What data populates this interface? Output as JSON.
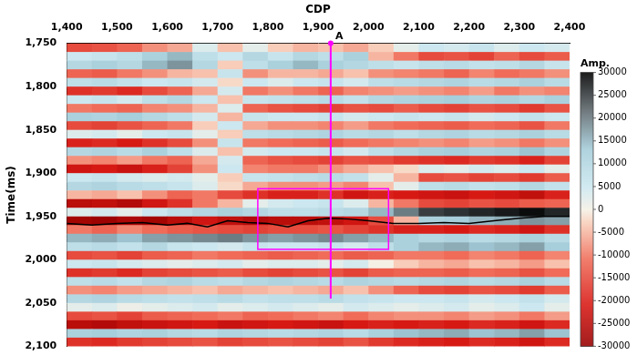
{
  "chart_data": {
    "type": "heatmap",
    "x_label": "CDP",
    "y_label": "Time(ms)",
    "xlim": [
      1400,
      2400
    ],
    "xticks": [
      1400,
      1500,
      1600,
      1700,
      1800,
      1900,
      2000,
      2100,
      2200,
      2300,
      2400
    ],
    "ylim": [
      2100,
      1750
    ],
    "yticks": [
      1750,
      1800,
      1850,
      1900,
      1950,
      2000,
      2050,
      2100
    ],
    "grid": false,
    "x_bins": [
      1400,
      1450,
      1500,
      1550,
      1600,
      1650,
      1700,
      1750,
      1800,
      1850,
      1900,
      1950,
      2000,
      2050,
      2100,
      2150,
      2200,
      2250,
      2300,
      2350,
      2400
    ],
    "y_bins": [
      1750,
      1760,
      1770,
      1780,
      1790,
      1800,
      1810,
      1820,
      1830,
      1840,
      1850,
      1860,
      1870,
      1880,
      1890,
      1900,
      1910,
      1920,
      1930,
      1940,
      1950,
      1960,
      1970,
      1980,
      1990,
      2000,
      2010,
      2020,
      2030,
      2040,
      2050,
      2060,
      2070,
      2080,
      2090,
      2100
    ],
    "cells": [
      [
        -15000,
        -14000,
        -12000,
        -8000,
        -6000,
        3000,
        -4000,
        2000,
        -3000,
        -5000,
        -4000,
        -6000,
        -3000,
        2000,
        5000,
        4000,
        6000,
        3000,
        5000,
        4000
      ],
      [
        5000,
        6000,
        8000,
        12000,
        15000,
        8000,
        5000,
        10000,
        6000,
        10000,
        8000,
        12000,
        -5000,
        -10000,
        -15000,
        -14000,
        -16000,
        -12000,
        -15000,
        -13000
      ],
      [
        10000,
        12000,
        10000,
        15000,
        18000,
        10000,
        -3000,
        8000,
        12000,
        15000,
        12000,
        10000,
        8000,
        6000,
        8000,
        9000,
        7000,
        8000,
        10000,
        6000
      ],
      [
        -12000,
        -13000,
        -10000,
        -8000,
        -5000,
        -4000,
        6000,
        -8000,
        -5000,
        -5000,
        -6000,
        -4000,
        -8000,
        -9000,
        -10000,
        -12000,
        -9000,
        -11000,
        -10000,
        -8000
      ],
      [
        8000,
        9000,
        7000,
        5000,
        6000,
        4000,
        -2000,
        5000,
        3000,
        5000,
        6000,
        4000,
        8000,
        9000,
        10000,
        11000,
        9000,
        10000,
        12000,
        9000
      ],
      [
        -18000,
        -17000,
        -19000,
        -15000,
        -12000,
        -6000,
        4000,
        -10000,
        -8000,
        -10000,
        -12000,
        -9000,
        -8000,
        -7000,
        -8000,
        -9000,
        -7000,
        -10000,
        -8000,
        -9000
      ],
      [
        5000,
        6000,
        4000,
        8000,
        10000,
        5000,
        -4000,
        6000,
        7000,
        8000,
        9000,
        7000,
        10000,
        11000,
        12000,
        13000,
        11000,
        12000,
        10000,
        12000
      ],
      [
        -10000,
        -11000,
        -12000,
        -9000,
        -8000,
        -5000,
        3000,
        -12000,
        -14000,
        -15000,
        -16000,
        -14000,
        -15000,
        -13000,
        -15000,
        -16000,
        -14000,
        -15000,
        -17000,
        -14000
      ],
      [
        12000,
        11000,
        13000,
        10000,
        8000,
        4000,
        -5000,
        6000,
        5000,
        5000,
        6000,
        4000,
        5000,
        6000,
        5000,
        6000,
        4000,
        5000,
        7000,
        5000
      ],
      [
        -15000,
        -16000,
        -14000,
        -12000,
        -10000,
        -3000,
        5000,
        -6000,
        -8000,
        -8000,
        -9000,
        -7000,
        -10000,
        -11000,
        -12000,
        -13000,
        -11000,
        -12000,
        -14000,
        -10000
      ],
      [
        3000,
        4000,
        2000,
        5000,
        6000,
        2000,
        -3000,
        8000,
        9000,
        10000,
        11000,
        9000,
        10000,
        8000,
        10000,
        11000,
        9000,
        10000,
        12000,
        9000
      ],
      [
        -20000,
        -19000,
        -21000,
        -18000,
        -15000,
        -8000,
        6000,
        -10000,
        -11000,
        -12000,
        -13000,
        -11000,
        -10000,
        -9000,
        -8000,
        -9000,
        -7000,
        -8000,
        -10000,
        -8000
      ],
      [
        10000,
        11000,
        9000,
        12000,
        8000,
        3000,
        -4000,
        4000,
        5000,
        5000,
        6000,
        4000,
        8000,
        10000,
        12000,
        13000,
        11000,
        12000,
        14000,
        11000
      ],
      [
        -8000,
        -9000,
        -7000,
        -10000,
        -12000,
        -6000,
        4000,
        -12000,
        -14000,
        -15000,
        -16000,
        -14000,
        -15000,
        -17000,
        -18000,
        -19000,
        -17000,
        -18000,
        -20000,
        -16000
      ],
      [
        -22000,
        -21000,
        -23000,
        -20000,
        -16000,
        -8000,
        5000,
        -9000,
        -10000,
        -10000,
        -8000,
        -6000,
        -4000,
        -2000,
        3000,
        2000,
        4000,
        3000,
        5000,
        2000
      ],
      [
        5000,
        6000,
        4000,
        3000,
        4000,
        2000,
        -3000,
        6000,
        7000,
        8000,
        9000,
        7000,
        2000,
        -5000,
        -15000,
        -14000,
        -16000,
        -15000,
        -17000,
        -13000
      ],
      [
        10000,
        11000,
        9000,
        8000,
        6000,
        3000,
        -2000,
        -6000,
        -8000,
        -8000,
        -7000,
        -9000,
        -4000,
        2000,
        8000,
        9000,
        7000,
        8000,
        10000,
        7000
      ],
      [
        -5000,
        -6000,
        -4000,
        -8000,
        -12000,
        -10000,
        -15000,
        -18000,
        -20000,
        -20000,
        -18000,
        -22000,
        -20000,
        -21000,
        -22000,
        -23000,
        -21000,
        -22000,
        -24000,
        -20000
      ],
      [
        -25000,
        -24000,
        -26000,
        -22000,
        -18000,
        -10000,
        -5000,
        2000,
        4000,
        5000,
        6000,
        3000,
        -5000,
        -10000,
        -15000,
        -16000,
        -14000,
        -15000,
        -13000,
        -12000
      ],
      [
        3000,
        4000,
        2000,
        5000,
        8000,
        10000,
        12000,
        10000,
        8000,
        8000,
        9000,
        10000,
        15000,
        20000,
        25000,
        26000,
        27000,
        28000,
        29000,
        27000
      ],
      [
        -28000,
        -29000,
        -27000,
        -28000,
        -25000,
        -22000,
        -24000,
        -26000,
        -25000,
        -25000,
        -24000,
        -22000,
        -15000,
        -5000,
        12000,
        13000,
        15000,
        16000,
        18000,
        17000
      ],
      [
        -10000,
        -12000,
        -9000,
        -11000,
        -13000,
        -14000,
        -15000,
        -16000,
        -15000,
        -15000,
        -14000,
        -16000,
        -18000,
        -20000,
        -20000,
        -21000,
        -19000,
        -20000,
        -22000,
        -18000
      ],
      [
        15000,
        16000,
        14000,
        17000,
        18000,
        19000,
        20000,
        18000,
        17000,
        18000,
        19000,
        17000,
        15000,
        12000,
        10000,
        11000,
        9000,
        10000,
        12000,
        9000
      ],
      [
        8000,
        9000,
        7000,
        10000,
        6000,
        5000,
        4000,
        6000,
        5000,
        5000,
        6000,
        4000,
        8000,
        12000,
        15000,
        16000,
        14000,
        15000,
        17000,
        13000
      ],
      [
        -15000,
        -14000,
        -16000,
        -13000,
        -12000,
        -10000,
        -11000,
        -12000,
        -13000,
        -12000,
        -11000,
        -13000,
        -12000,
        -10000,
        -10000,
        -11000,
        -9000,
        -10000,
        -12000,
        -9000
      ],
      [
        5000,
        6000,
        4000,
        3000,
        2000,
        3000,
        4000,
        2000,
        3000,
        3000,
        2000,
        4000,
        0,
        -3000,
        -5000,
        -6000,
        -4000,
        -5000,
        -7000,
        -4000
      ],
      [
        -18000,
        -17000,
        -19000,
        -16000,
        -15000,
        -14000,
        -13000,
        -15000,
        -16000,
        -15000,
        -14000,
        -16000,
        -13000,
        -12000,
        -12000,
        -13000,
        -11000,
        -12000,
        -14000,
        -11000
      ],
      [
        8000,
        9000,
        7000,
        10000,
        11000,
        9000,
        8000,
        10000,
        11000,
        10000,
        9000,
        11000,
        10000,
        9000,
        10000,
        11000,
        9000,
        10000,
        12000,
        9000
      ],
      [
        -8000,
        -9000,
        -7000,
        -6000,
        -5000,
        -4000,
        -6000,
        -5000,
        -4000,
        -5000,
        -6000,
        -4000,
        -8000,
        -12000,
        -15000,
        -16000,
        -14000,
        -15000,
        -17000,
        -13000
      ],
      [
        10000,
        11000,
        9000,
        8000,
        7000,
        8000,
        9000,
        7000,
        8000,
        8000,
        9000,
        7000,
        6000,
        5000,
        5000,
        6000,
        4000,
        5000,
        7000,
        4000
      ],
      [
        2000,
        3000,
        1000,
        2000,
        3000,
        4000,
        2000,
        3000,
        4000,
        3000,
        2000,
        4000,
        3000,
        2000,
        3000,
        4000,
        2000,
        3000,
        5000,
        2000
      ],
      [
        -15000,
        -14000,
        -16000,
        -13000,
        -12000,
        -11000,
        -10000,
        -12000,
        -11000,
        -10000,
        -9000,
        -11000,
        -9000,
        -8000,
        -8000,
        -9000,
        -7000,
        -8000,
        -10000,
        -7000
      ],
      [
        -25000,
        -26000,
        -24000,
        -23000,
        -22000,
        -21000,
        -23000,
        -22000,
        -21000,
        -22000,
        -23000,
        -21000,
        -20000,
        -21000,
        -20000,
        -21000,
        -19000,
        -20000,
        -22000,
        -19000
      ],
      [
        12000,
        13000,
        11000,
        12000,
        10000,
        9000,
        11000,
        10000,
        9000,
        10000,
        11000,
        9000,
        12000,
        14000,
        15000,
        16000,
        14000,
        15000,
        17000,
        14000
      ],
      [
        -18000,
        -19000,
        -17000,
        -16000,
        -15000,
        -14000,
        -16000,
        -15000,
        -14000,
        -15000,
        -16000,
        -14000,
        -17000,
        -19000,
        -20000,
        -21000,
        -19000,
        -20000,
        -22000,
        -19000
      ]
    ],
    "colorbar": {
      "label": "Amp.",
      "range": [
        -30000,
        30000
      ],
      "ticks": [
        30000,
        25000,
        20000,
        15000,
        10000,
        5000,
        0,
        -5000,
        -10000,
        -15000,
        -20000,
        -25000,
        -30000
      ]
    },
    "horizon": {
      "color": "#000000",
      "x": [
        1400,
        1450,
        1500,
        1550,
        1600,
        1640,
        1680,
        1720,
        1760,
        1800,
        1840,
        1880,
        1920,
        1960,
        2000,
        2050,
        2100,
        2150,
        2200,
        2250,
        2300,
        2350,
        2400
      ],
      "y": [
        1958,
        1960,
        1958,
        1957,
        1960,
        1958,
        1962,
        1955,
        1957,
        1958,
        1962,
        1955,
        1952,
        1953,
        1955,
        1958,
        1958,
        1957,
        1958,
        1955,
        1952,
        1950,
        1950
      ]
    },
    "well": {
      "label": "A",
      "x": 1925,
      "y": [
        1750,
        2045
      ],
      "color": "#ff00ff"
    },
    "box": {
      "x": [
        1780,
        2040
      ],
      "y": [
        1918,
        1988
      ],
      "color": "#ff00ff"
    }
  }
}
